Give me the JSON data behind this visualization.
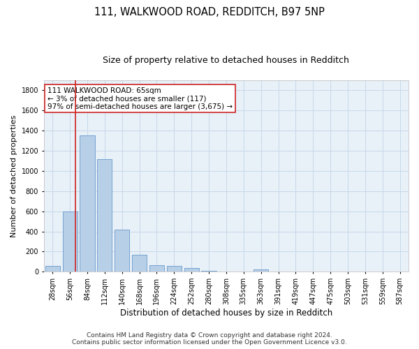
{
  "title1": "111, WALKWOOD ROAD, REDDITCH, B97 5NP",
  "title2": "Size of property relative to detached houses in Redditch",
  "xlabel": "Distribution of detached houses by size in Redditch",
  "ylabel": "Number of detached properties",
  "categories": [
    "28sqm",
    "56sqm",
    "84sqm",
    "112sqm",
    "140sqm",
    "168sqm",
    "196sqm",
    "224sqm",
    "252sqm",
    "280sqm",
    "308sqm",
    "335sqm",
    "363sqm",
    "391sqm",
    "419sqm",
    "447sqm",
    "475sqm",
    "503sqm",
    "531sqm",
    "559sqm",
    "587sqm"
  ],
  "values": [
    55,
    600,
    1350,
    1120,
    420,
    170,
    65,
    60,
    35,
    10,
    0,
    0,
    20,
    0,
    0,
    0,
    0,
    0,
    0,
    0,
    0
  ],
  "bar_color": "#b8cfe8",
  "bar_edge_color": "#6699cc",
  "property_label": "111 WALKWOOD ROAD: 65sqm",
  "annotation_line1": "← 3% of detached houses are smaller (117)",
  "annotation_line2": "97% of semi-detached houses are larger (3,675) →",
  "vline_color": "#cc2222",
  "annotation_box_color": "#cc2222",
  "ylim": [
    0,
    1900
  ],
  "yticks": [
    0,
    200,
    400,
    600,
    800,
    1000,
    1200,
    1400,
    1600,
    1800
  ],
  "grid_color": "#c8d8e8",
  "background_color": "#e8f0f8",
  "footer_line1": "Contains HM Land Registry data © Crown copyright and database right 2024.",
  "footer_line2": "Contains public sector information licensed under the Open Government Licence v3.0.",
  "title1_fontsize": 10.5,
  "title2_fontsize": 9,
  "xlabel_fontsize": 8.5,
  "ylabel_fontsize": 8,
  "tick_fontsize": 7,
  "annotation_fontsize": 7.5,
  "footer_fontsize": 6.5
}
